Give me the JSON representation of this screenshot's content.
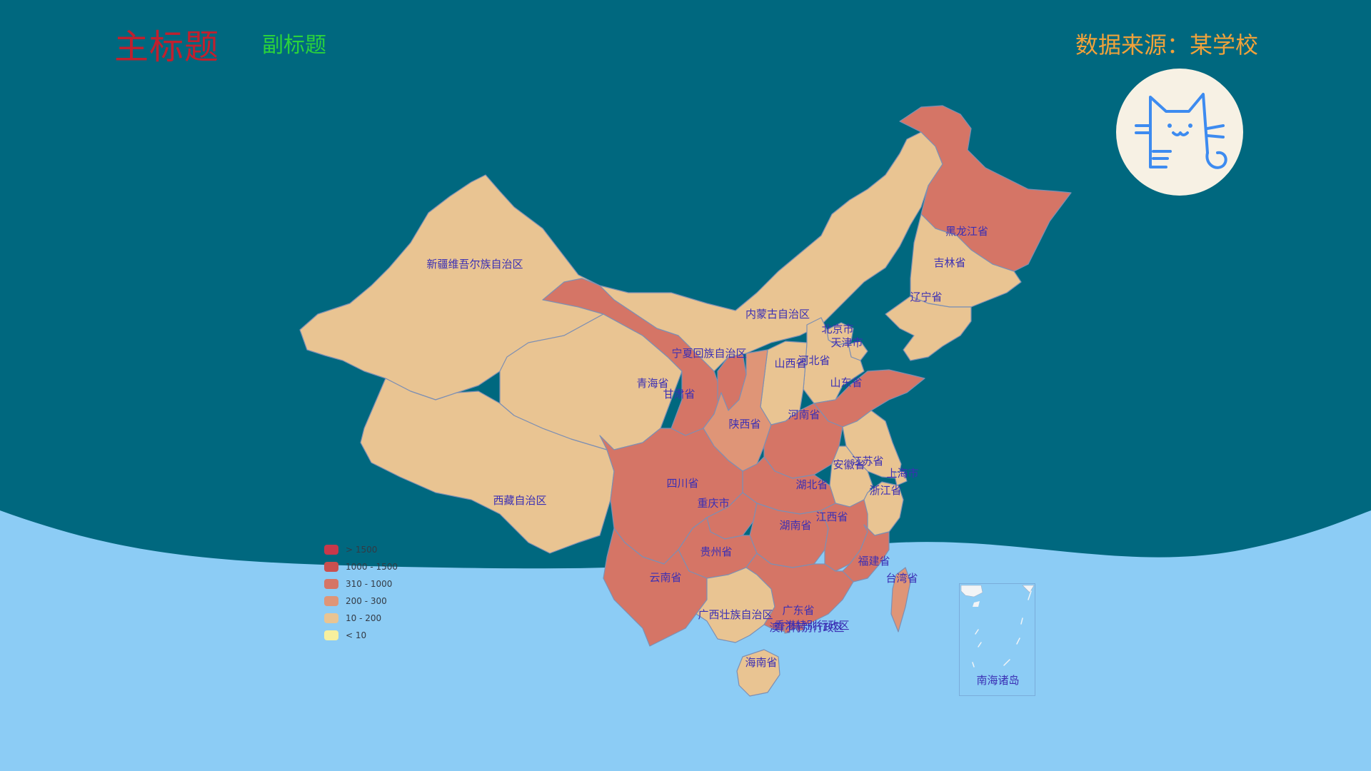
{
  "header": {
    "title": "主标题",
    "subtitle": "副标题",
    "source": "数据来源：某学校"
  },
  "colors": {
    "background_top": "#00687f",
    "background_bottom": "#8cccf5",
    "title": "#c0202e",
    "subtitle": "#2ad23c",
    "source": "#f0a23a",
    "label": "#3b2fb4"
  },
  "legend": {
    "items": [
      {
        "label": "> 1500",
        "color": "#c8384a"
      },
      {
        "label": "1000 - 1500",
        "color": "#c9504f"
      },
      {
        "label": "310 - 1000",
        "color": "#d57566"
      },
      {
        "label": "200 - 300",
        "color": "#df9577"
      },
      {
        "label": "10 - 200",
        "color": "#e9c492"
      },
      {
        "label": "< 10",
        "color": "#f7f09e"
      }
    ]
  },
  "provinces": [
    {
      "name": "新疆维吾尔族自治区",
      "bin": 4
    },
    {
      "name": "西藏自治区",
      "bin": 4
    },
    {
      "name": "青海省",
      "bin": 4
    },
    {
      "name": "甘肃省",
      "bin": 2
    },
    {
      "name": "宁夏回族自治区",
      "bin": 2
    },
    {
      "name": "内蒙古自治区",
      "bin": 4
    },
    {
      "name": "黑龙江省",
      "bin": 2
    },
    {
      "name": "吉林省",
      "bin": 4
    },
    {
      "name": "辽宁省",
      "bin": 4
    },
    {
      "name": "北京市",
      "bin": 4
    },
    {
      "name": "天津市",
      "bin": 4
    },
    {
      "name": "河北省",
      "bin": 4
    },
    {
      "name": "山西省",
      "bin": 4
    },
    {
      "name": "陕西省",
      "bin": 3
    },
    {
      "name": "山东省",
      "bin": 2
    },
    {
      "name": "河南省",
      "bin": 2
    },
    {
      "name": "江苏省",
      "bin": 4
    },
    {
      "name": "安徽省",
      "bin": 4
    },
    {
      "name": "上海市",
      "bin": 4
    },
    {
      "name": "浙江省",
      "bin": 4
    },
    {
      "name": "湖北省",
      "bin": 2
    },
    {
      "name": "四川省",
      "bin": 2
    },
    {
      "name": "重庆市",
      "bin": 2
    },
    {
      "name": "湖南省",
      "bin": 2
    },
    {
      "name": "江西省",
      "bin": 2
    },
    {
      "name": "贵州省",
      "bin": 2
    },
    {
      "name": "云南省",
      "bin": 2
    },
    {
      "name": "福建省",
      "bin": 2
    },
    {
      "name": "台湾省",
      "bin": 3
    },
    {
      "name": "广西壮族自治区",
      "bin": 4
    },
    {
      "name": "广东省",
      "bin": 2
    },
    {
      "name": "香港特别行政区",
      "bin": 2
    },
    {
      "name": "澳门特别行政区",
      "bin": 2
    },
    {
      "name": "海南省",
      "bin": 4
    }
  ],
  "inset": {
    "label": "南海诸岛"
  }
}
